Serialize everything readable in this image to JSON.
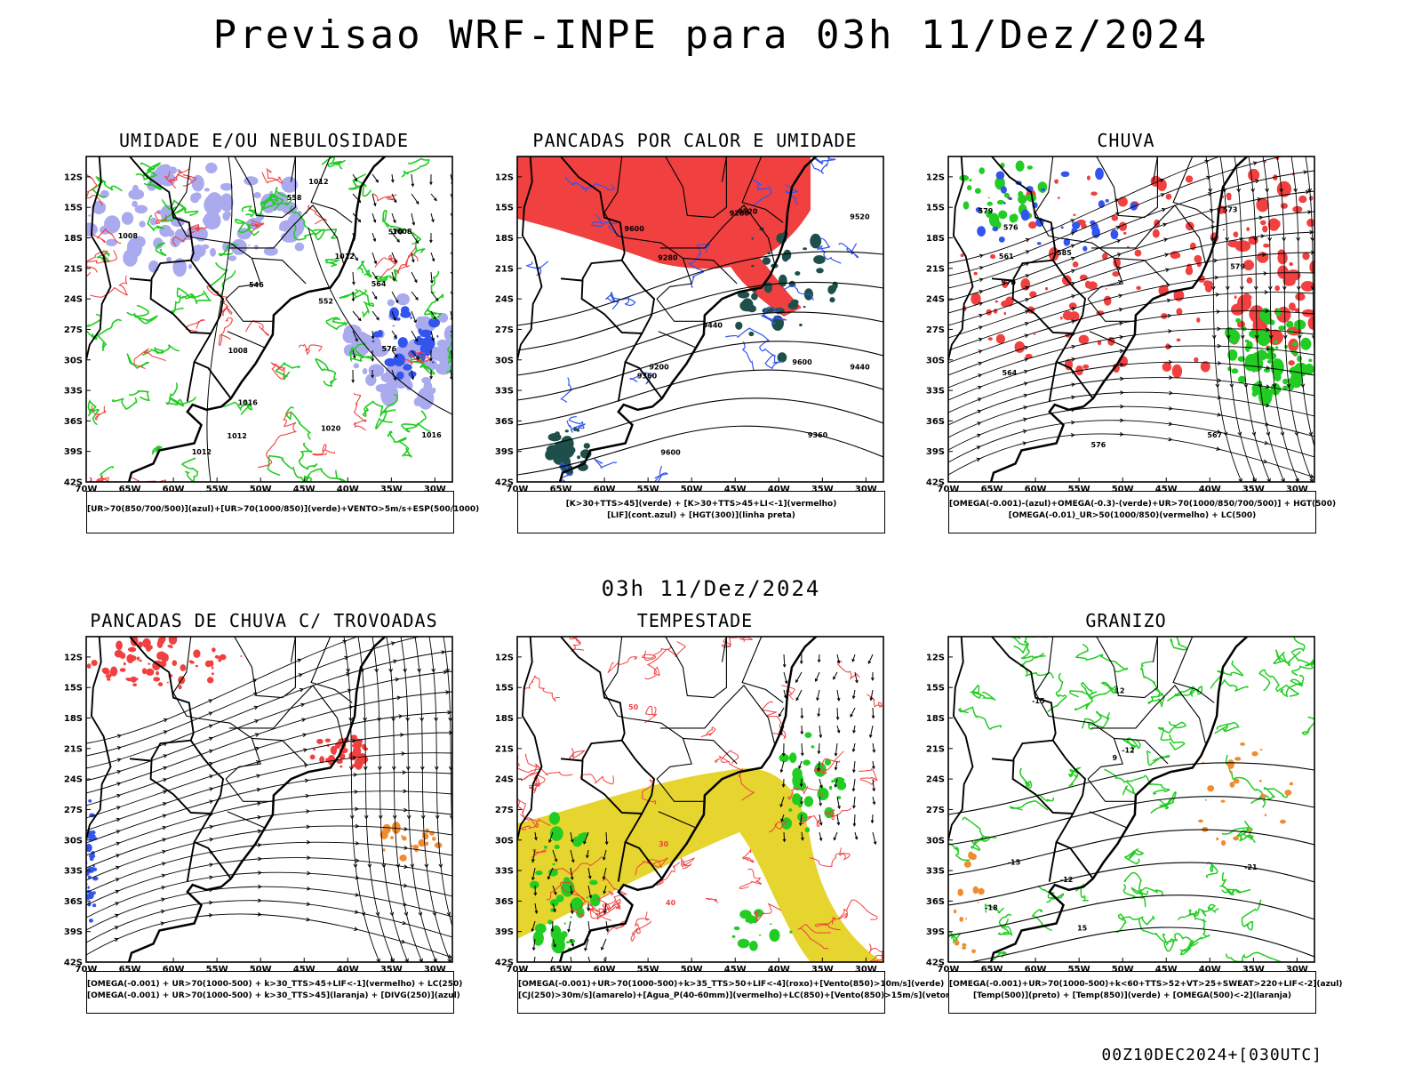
{
  "header": {
    "title": "Previsao WRF-INPE  para 03h 11/Dez/2024"
  },
  "middle_time": "03h 11/Dez/2024",
  "footer_stamp": "00Z10DEC2024+[030UTC]",
  "axes": {
    "lat_labels": [
      "12S",
      "15S",
      "18S",
      "21S",
      "24S",
      "27S",
      "30S",
      "33S",
      "36S",
      "39S",
      "42S"
    ],
    "lon_labels": [
      "70W",
      "65W",
      "60W",
      "55W",
      "50W",
      "45W",
      "40W",
      "35W",
      "30W"
    ]
  },
  "colors": {
    "red": "#f04040",
    "green": "#22cc22",
    "blue": "#3355ee",
    "lavender": "#aaaaee",
    "yellow": "#e5d52e",
    "darkteal": "#1f4f4a",
    "orange": "#f08c30"
  },
  "panels": [
    {
      "title": "UMIDADE E/OU NEBULOSIDADE",
      "legend": [
        "[UR>70(850/700/500)](azul)+[UR>70(1000/850)](verde)+VENTO>5m/s+ESP(500/1000)"
      ],
      "contour_labels": [
        "1012",
        "1008",
        "1012",
        "1008",
        "1012",
        "1016",
        "1020",
        "1008",
        "1016",
        "1012",
        "576",
        "570",
        "564",
        "558",
        "552",
        "546"
      ]
    },
    {
      "title": "PANCADAS POR CALOR E UMIDADE",
      "legend": [
        "[K>30+TTS>45](verde) + [K>30+TTS>45+LI<-1](vermelho)",
        "[LIF](cont.azul) + [HGT(300)](linha preta)"
      ],
      "contour_labels": [
        "9600",
        "9600",
        "9600",
        "9520",
        "9440",
        "9360",
        "9280",
        "9200",
        "9520",
        "9440",
        "9360",
        "9280"
      ]
    },
    {
      "title": "CHUVA",
      "legend": [
        "[OMEGA(-0.001)-(azul)+OMEGA(-0.3)-(verde)+UR>70(1000/850/700/500)] + HGT(500)",
        "[OMEGA(-0.01)_UR>50(1000/850)(vermelho) + LC(500)"
      ],
      "contour_labels": [
        "585",
        "579",
        "576",
        "573",
        "570",
        "567",
        "564",
        "561",
        "579",
        "576"
      ]
    },
    {
      "title": "PANCADAS DE CHUVA C/ TROVOADAS",
      "legend": [
        "[OMEGA(-0.001) + UR>70(1000-500) + k>30_TTS>45+LIF<-1](vermelho) + LC(250)",
        "[OMEGA(-0.001) + UR>70(1000-500) + k>30_TTS>45](laranja) + [DIVG(250)](azul)"
      ],
      "contour_labels": []
    },
    {
      "title": "TEMPESTADE",
      "legend": [
        "[OMEGA(-0.001)+UR>70(1000-500)+k>35_TTS>50+LIF<-4](roxo)+[Vento(850)>10m/s](verde)",
        "[CJ(250)>30m/s](amarelo)+[Agua_P(40-60mm)](vermelho)+LC(850)+[Vento(850)>15m/s](vetor)"
      ],
      "contour_labels": [
        "50",
        "40",
        "30"
      ]
    },
    {
      "title": "GRANIZO",
      "legend": [
        "[OMEGA(-0.001)+UR>70(1000-500)+k<60+TTS>52+VT>25+SWEAT>220+LIF<-2](azul)",
        "[Temp(500)](preto) + [Temp(850)](verde) + [OMEGA(500)<-2](laranja)"
      ],
      "contour_labels": [
        "-12",
        "-15",
        "-18",
        "-21",
        "15",
        "12",
        "9",
        "-12",
        "-15"
      ]
    }
  ]
}
